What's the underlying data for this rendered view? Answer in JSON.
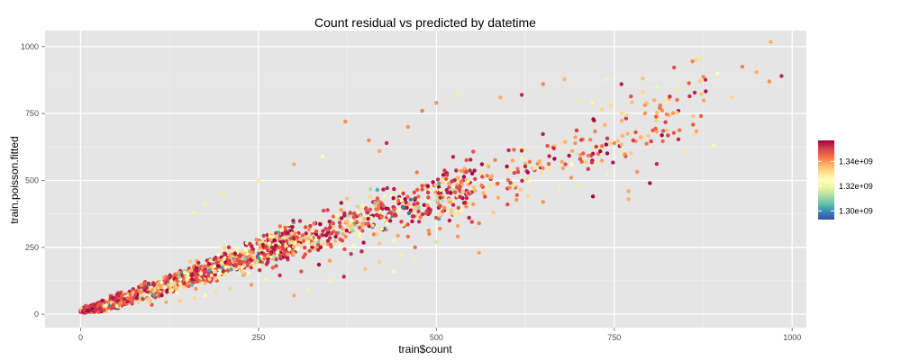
{
  "chart_data": {
    "type": "scatter",
    "title": "Count residual vs predicted by datetime",
    "xlabel": "train$count",
    "ylabel": "train.poisson.fitted",
    "xlim": [
      -50,
      1020
    ],
    "ylim": [
      -50,
      1060
    ],
    "x_ticks": [
      0,
      250,
      500,
      750,
      1000
    ],
    "x_tick_labels": [
      "0",
      "250",
      "500",
      "750",
      "1000"
    ],
    "y_ticks": [
      0,
      250,
      500,
      750,
      1000
    ],
    "y_tick_labels": [
      "0",
      "250",
      "500",
      "750",
      "1000"
    ],
    "grid": true,
    "background": "#e5e5e5",
    "legend": {
      "placement": "right",
      "type": "colorbar",
      "range": [
        1293000000,
        1357000000
      ],
      "ticks": [
        1300000000,
        1320000000,
        1340000000
      ],
      "tick_labels": [
        "1.30e+09",
        "1.32e+09",
        "1.34e+09"
      ],
      "colors": [
        "#3f4ea1",
        "#3288bd",
        "#66c2a5",
        "#abdda4",
        "#e6f598",
        "#ffffbf",
        "#fee08b",
        "#fdae61",
        "#f46d43",
        "#d53e4f",
        "#9e0142"
      ]
    },
    "points": [
      [
        970,
        1018
      ],
      [
        985,
        890
      ],
      [
        968,
        870
      ],
      [
        950,
        905
      ],
      [
        930,
        925
      ],
      [
        915,
        810
      ],
      [
        895,
        900
      ],
      [
        870,
        955
      ],
      [
        860,
        945
      ],
      [
        890,
        630
      ],
      [
        810,
        850
      ],
      [
        790,
        880
      ],
      [
        760,
        860
      ],
      [
        740,
        880
      ],
      [
        680,
        878
      ],
      [
        650,
        860
      ],
      [
        590,
        810
      ],
      [
        620,
        820
      ],
      [
        720,
        790
      ],
      [
        745,
        780
      ],
      [
        700,
        800
      ],
      [
        530,
        820
      ],
      [
        500,
        790
      ],
      [
        480,
        760
      ],
      [
        372,
        720
      ],
      [
        460,
        700
      ],
      [
        420,
        610
      ],
      [
        430,
        640
      ],
      [
        405,
        650
      ],
      [
        340,
        590
      ],
      [
        300,
        560
      ],
      [
        250,
        500
      ],
      [
        200,
        450
      ],
      [
        175,
        415
      ],
      [
        160,
        380
      ],
      [
        740,
        520
      ],
      [
        770,
        460
      ],
      [
        800,
        490
      ],
      [
        720,
        440
      ],
      [
        770,
        430
      ],
      [
        700,
        480
      ],
      [
        650,
        420
      ],
      [
        600,
        410
      ],
      [
        580,
        380
      ],
      [
        550,
        345
      ],
      [
        530,
        330
      ],
      [
        505,
        320
      ],
      [
        490,
        300
      ],
      [
        460,
        290
      ],
      [
        440,
        275
      ],
      [
        420,
        265
      ],
      [
        395,
        235
      ],
      [
        380,
        225
      ],
      [
        350,
        200
      ],
      [
        335,
        185
      ],
      [
        310,
        160
      ],
      [
        280,
        145
      ],
      [
        260,
        130
      ],
      [
        240,
        110
      ],
      [
        210,
        95
      ],
      [
        190,
        85
      ],
      [
        175,
        70
      ],
      [
        160,
        60
      ],
      [
        140,
        50
      ],
      [
        120,
        45
      ],
      [
        100,
        35
      ],
      [
        420,
        195
      ],
      [
        450,
        220
      ],
      [
        470,
        250
      ],
      [
        500,
        270
      ],
      [
        530,
        290
      ],
      [
        560,
        340
      ],
      [
        560,
        230
      ],
      [
        300,
        70
      ],
      [
        320,
        90
      ],
      [
        350,
        125
      ],
      [
        370,
        140
      ],
      [
        400,
        170
      ],
      [
        440,
        160
      ],
      [
        470,
        205
      ],
      [
        600,
        470
      ],
      [
        630,
        500
      ],
      [
        660,
        540
      ],
      [
        690,
        560
      ],
      [
        720,
        600
      ],
      [
        750,
        640
      ],
      [
        780,
        680
      ],
      [
        810,
        720
      ],
      [
        840,
        760
      ],
      [
        620,
        580
      ],
      [
        570,
        560
      ],
      [
        540,
        540
      ],
      [
        510,
        510
      ],
      [
        480,
        480
      ],
      [
        450,
        460
      ],
      [
        420,
        420
      ],
      [
        390,
        400
      ],
      [
        360,
        370
      ],
      [
        330,
        340
      ],
      [
        300,
        310
      ],
      [
        270,
        280
      ],
      [
        240,
        250
      ],
      [
        210,
        220
      ],
      [
        180,
        190
      ],
      [
        150,
        160
      ],
      [
        130,
        140
      ],
      [
        110,
        120
      ],
      [
        90,
        100
      ],
      [
        70,
        80
      ],
      [
        55,
        65
      ],
      [
        40,
        50
      ],
      [
        30,
        40
      ],
      [
        20,
        30
      ],
      [
        10,
        20
      ],
      [
        5,
        12
      ]
    ]
  }
}
